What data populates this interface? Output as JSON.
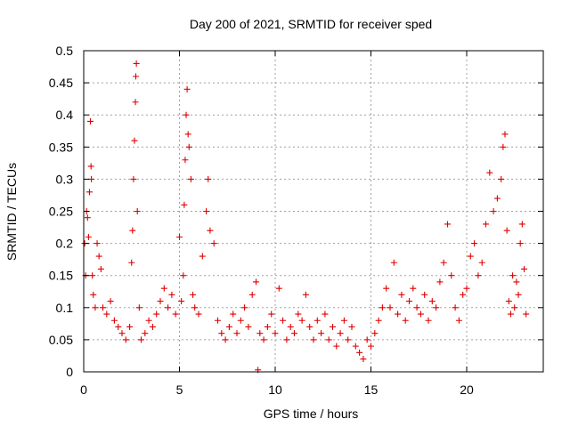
{
  "chart_data": {
    "type": "scatter",
    "title": "Day 200 of 2021, SRMTID for receiver sped",
    "xlabel": "GPS time / hours",
    "ylabel": "SRMTID / TECUs",
    "xlim": [
      0,
      24
    ],
    "ylim": [
      0,
      0.5
    ],
    "xticks": [
      0,
      5,
      10,
      15,
      20
    ],
    "xtick_labels": [
      "0",
      "5",
      "10",
      "15",
      "20"
    ],
    "yticks": [
      0,
      0.05,
      0.1,
      0.15,
      0.2,
      0.25,
      0.3,
      0.35,
      0.4,
      0.45,
      0.5
    ],
    "ytick_labels": [
      "0",
      "0.05",
      "0.1",
      "0.15",
      "0.2",
      "0.25",
      "0.3",
      "0.35",
      "0.4",
      "0.45",
      "0.5"
    ],
    "grid": true,
    "marker": "+",
    "color": "#e00000",
    "series": [
      {
        "name": "SRMTID",
        "points": [
          [
            0.05,
            0.2
          ],
          [
            0.1,
            0.15
          ],
          [
            0.15,
            0.25
          ],
          [
            0.2,
            0.24
          ],
          [
            0.25,
            0.21
          ],
          [
            0.3,
            0.28
          ],
          [
            0.35,
            0.39
          ],
          [
            0.38,
            0.32
          ],
          [
            0.4,
            0.3
          ],
          [
            0.45,
            0.15
          ],
          [
            0.5,
            0.12
          ],
          [
            0.6,
            0.1
          ],
          [
            0.7,
            0.2
          ],
          [
            0.8,
            0.18
          ],
          [
            0.9,
            0.16
          ],
          [
            1.0,
            0.1
          ],
          [
            1.2,
            0.09
          ],
          [
            1.4,
            0.11
          ],
          [
            1.6,
            0.08
          ],
          [
            1.8,
            0.07
          ],
          [
            2.0,
            0.06
          ],
          [
            2.2,
            0.05
          ],
          [
            2.4,
            0.07
          ],
          [
            2.5,
            0.17
          ],
          [
            2.55,
            0.22
          ],
          [
            2.6,
            0.3
          ],
          [
            2.65,
            0.36
          ],
          [
            2.7,
            0.42
          ],
          [
            2.72,
            0.46
          ],
          [
            2.75,
            0.48
          ],
          [
            2.8,
            0.25
          ],
          [
            2.9,
            0.1
          ],
          [
            3.0,
            0.05
          ],
          [
            3.2,
            0.06
          ],
          [
            3.4,
            0.08
          ],
          [
            3.6,
            0.07
          ],
          [
            3.8,
            0.09
          ],
          [
            4.0,
            0.11
          ],
          [
            4.2,
            0.13
          ],
          [
            4.4,
            0.1
          ],
          [
            4.6,
            0.12
          ],
          [
            4.8,
            0.09
          ],
          [
            5.0,
            0.21
          ],
          [
            5.1,
            0.11
          ],
          [
            5.2,
            0.15
          ],
          [
            5.25,
            0.26
          ],
          [
            5.3,
            0.33
          ],
          [
            5.35,
            0.4
          ],
          [
            5.4,
            0.44
          ],
          [
            5.45,
            0.37
          ],
          [
            5.5,
            0.35
          ],
          [
            5.6,
            0.3
          ],
          [
            5.7,
            0.12
          ],
          [
            5.8,
            0.1
          ],
          [
            6.0,
            0.09
          ],
          [
            6.2,
            0.18
          ],
          [
            6.4,
            0.25
          ],
          [
            6.5,
            0.3
          ],
          [
            6.6,
            0.22
          ],
          [
            6.8,
            0.2
          ],
          [
            7.0,
            0.08
          ],
          [
            7.2,
            0.06
          ],
          [
            7.4,
            0.05
          ],
          [
            7.6,
            0.07
          ],
          [
            7.8,
            0.09
          ],
          [
            8.0,
            0.06
          ],
          [
            8.2,
            0.08
          ],
          [
            8.4,
            0.1
          ],
          [
            8.6,
            0.07
          ],
          [
            8.8,
            0.12
          ],
          [
            9.0,
            0.14
          ],
          [
            9.1,
            0.003
          ],
          [
            9.2,
            0.06
          ],
          [
            9.4,
            0.05
          ],
          [
            9.6,
            0.07
          ],
          [
            9.8,
            0.09
          ],
          [
            10.0,
            0.06
          ],
          [
            10.2,
            0.13
          ],
          [
            10.4,
            0.08
          ],
          [
            10.6,
            0.05
          ],
          [
            10.8,
            0.07
          ],
          [
            11.0,
            0.06
          ],
          [
            11.2,
            0.09
          ],
          [
            11.4,
            0.08
          ],
          [
            11.6,
            0.12
          ],
          [
            11.8,
            0.07
          ],
          [
            12.0,
            0.05
          ],
          [
            12.2,
            0.08
          ],
          [
            12.4,
            0.06
          ],
          [
            12.6,
            0.09
          ],
          [
            12.8,
            0.05
          ],
          [
            13.0,
            0.07
          ],
          [
            13.2,
            0.04
          ],
          [
            13.4,
            0.06
          ],
          [
            13.6,
            0.08
          ],
          [
            13.8,
            0.05
          ],
          [
            14.0,
            0.07
          ],
          [
            14.2,
            0.04
          ],
          [
            14.4,
            0.03
          ],
          [
            14.6,
            0.02
          ],
          [
            14.8,
            0.05
          ],
          [
            15.0,
            0.04
          ],
          [
            15.2,
            0.06
          ],
          [
            15.4,
            0.08
          ],
          [
            15.6,
            0.1
          ],
          [
            15.8,
            0.13
          ],
          [
            16.0,
            0.1
          ],
          [
            16.2,
            0.17
          ],
          [
            16.4,
            0.09
          ],
          [
            16.6,
            0.12
          ],
          [
            16.8,
            0.08
          ],
          [
            17.0,
            0.11
          ],
          [
            17.2,
            0.13
          ],
          [
            17.4,
            0.1
          ],
          [
            17.6,
            0.09
          ],
          [
            17.8,
            0.12
          ],
          [
            18.0,
            0.08
          ],
          [
            18.2,
            0.11
          ],
          [
            18.4,
            0.1
          ],
          [
            18.6,
            0.14
          ],
          [
            18.8,
            0.17
          ],
          [
            19.0,
            0.23
          ],
          [
            19.2,
            0.15
          ],
          [
            19.4,
            0.1
          ],
          [
            19.6,
            0.08
          ],
          [
            19.8,
            0.12
          ],
          [
            20.0,
            0.13
          ],
          [
            20.2,
            0.18
          ],
          [
            20.4,
            0.2
          ],
          [
            20.6,
            0.15
          ],
          [
            20.8,
            0.17
          ],
          [
            21.0,
            0.23
          ],
          [
            21.2,
            0.31
          ],
          [
            21.4,
            0.25
          ],
          [
            21.6,
            0.27
          ],
          [
            21.8,
            0.3
          ],
          [
            21.9,
            0.35
          ],
          [
            22.0,
            0.37
          ],
          [
            22.1,
            0.22
          ],
          [
            22.2,
            0.11
          ],
          [
            22.3,
            0.09
          ],
          [
            22.4,
            0.15
          ],
          [
            22.5,
            0.1
          ],
          [
            22.6,
            0.14
          ],
          [
            22.7,
            0.12
          ],
          [
            22.8,
            0.2
          ],
          [
            22.9,
            0.23
          ],
          [
            23.0,
            0.16
          ],
          [
            23.1,
            0.09
          ]
        ]
      }
    ]
  }
}
